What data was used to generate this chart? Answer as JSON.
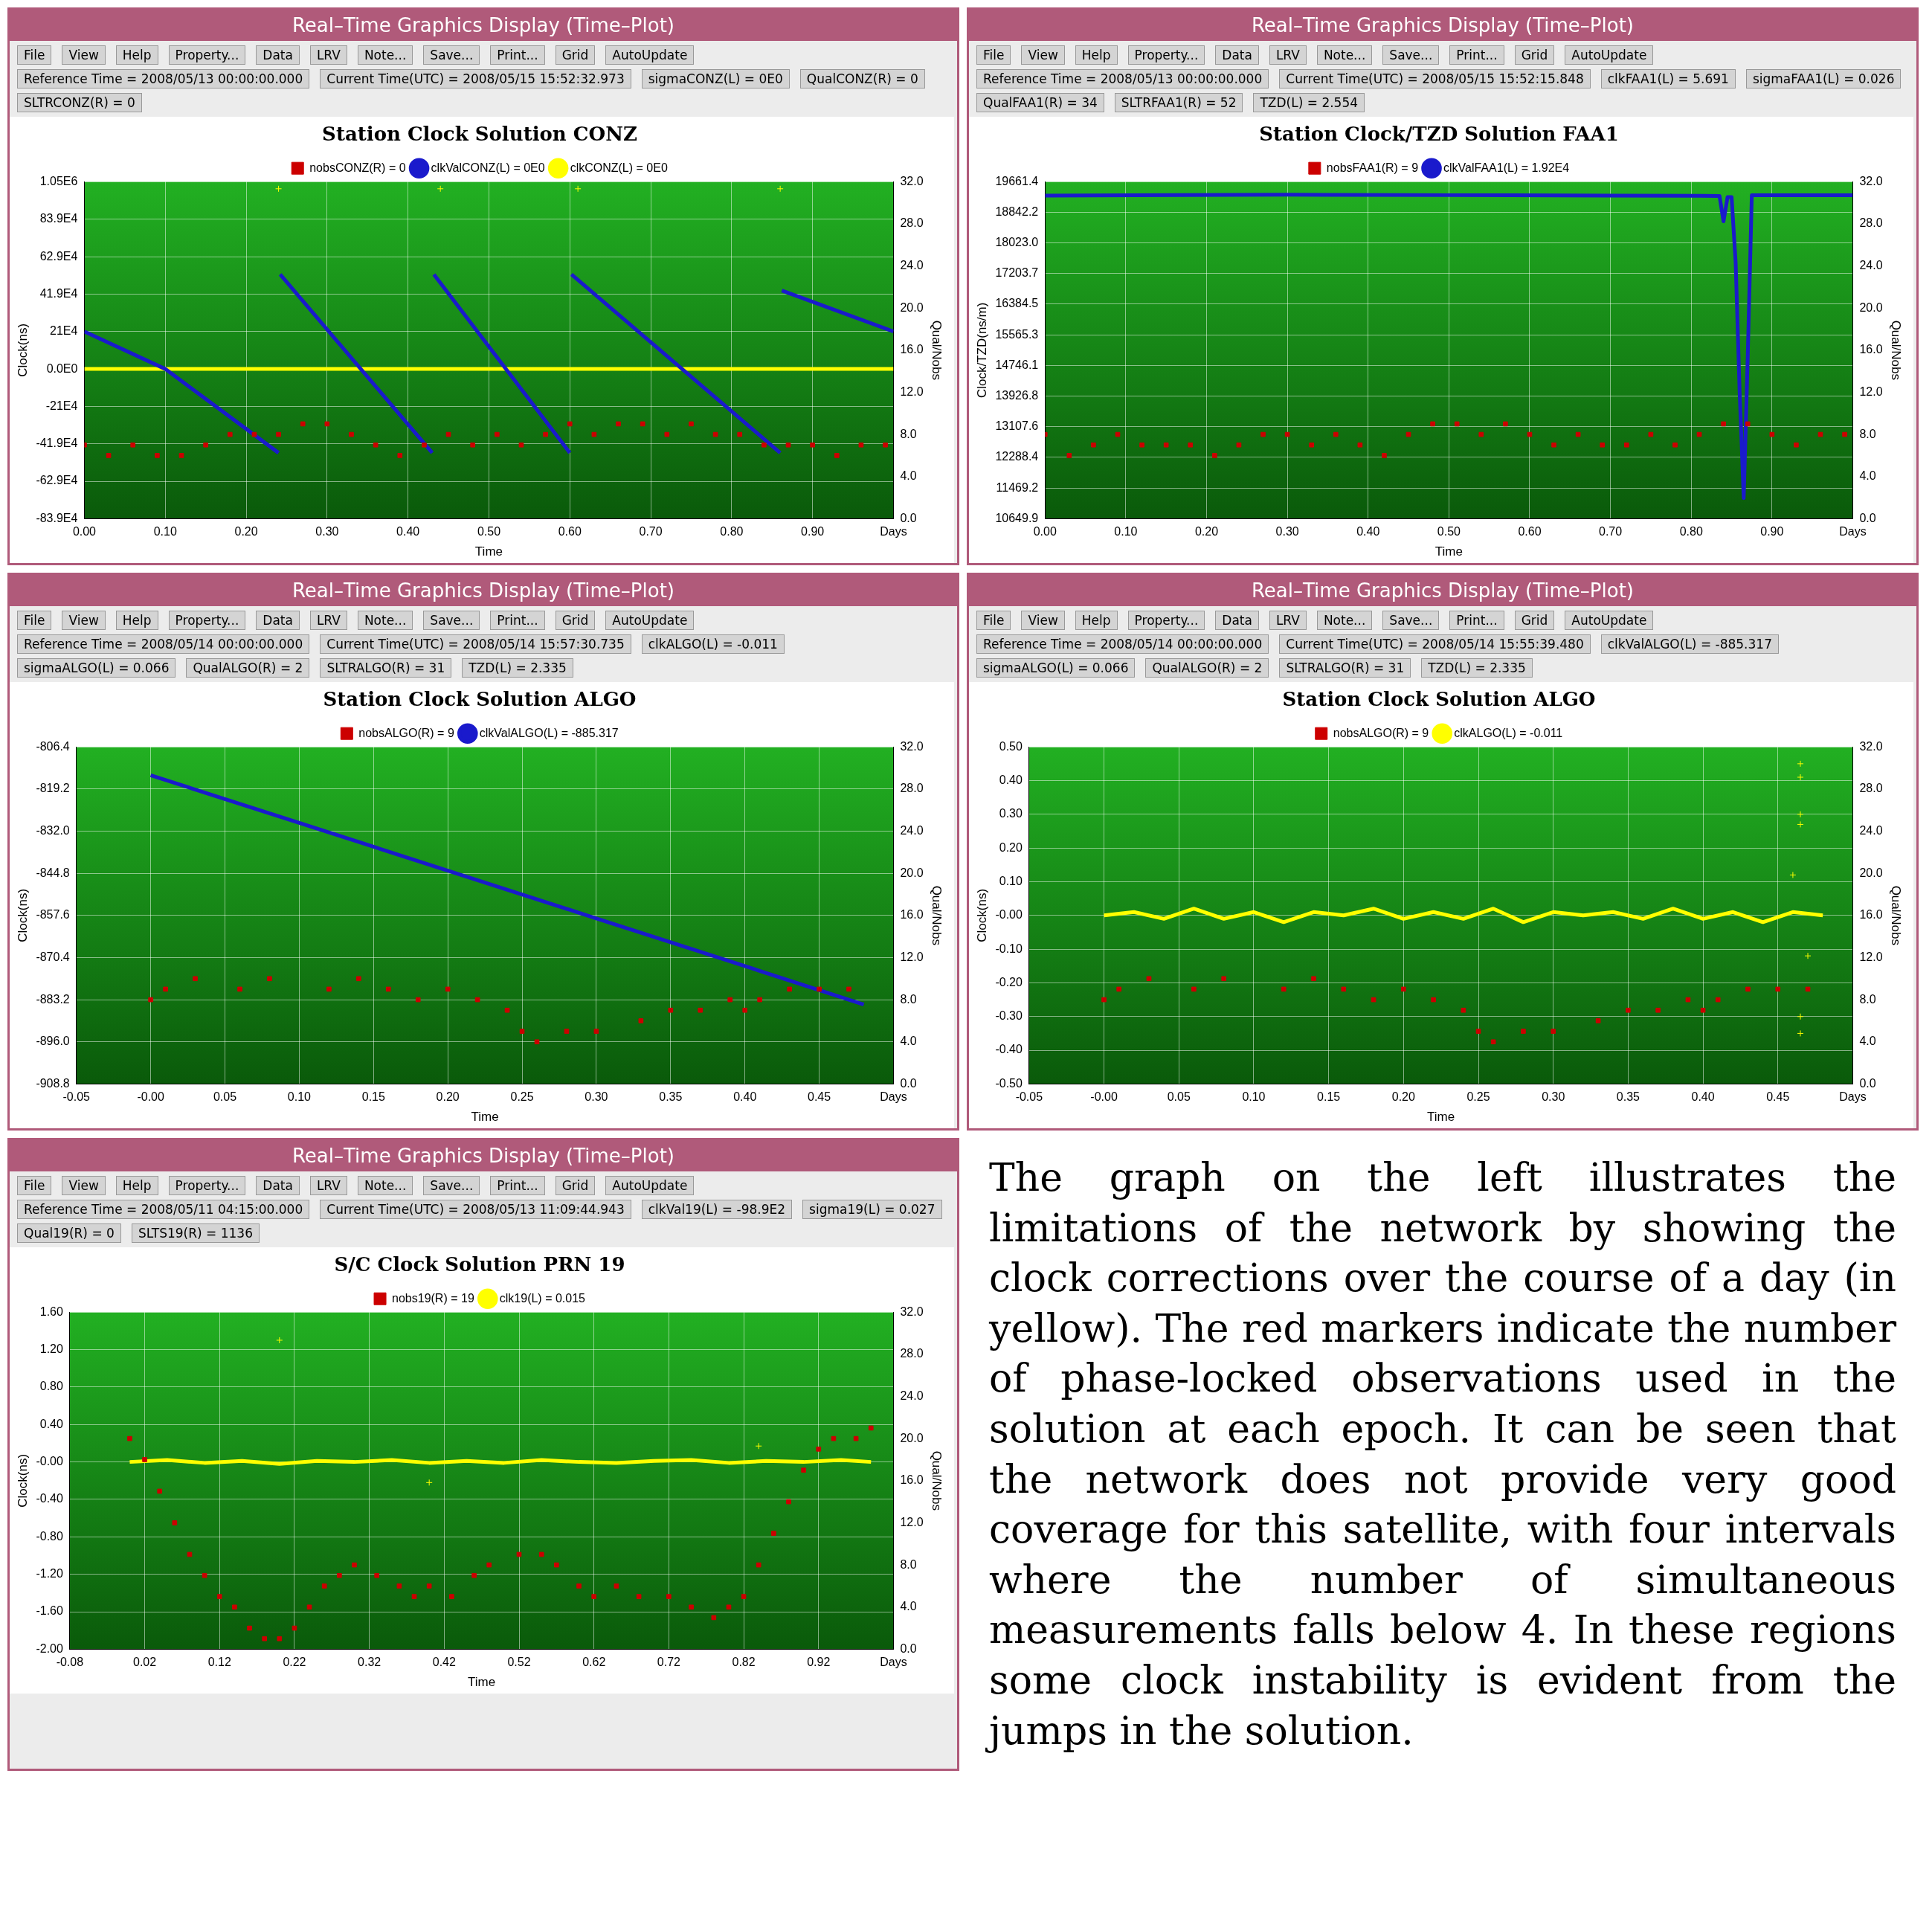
{
  "chart_data": [
    {
      "type": "line",
      "subtitle": "Real–Time Graphics Display (Time–Plot)",
      "title": "Station Clock Solution CONZ",
      "xlabel": "Time",
      "ylabel": "Clock(ns)",
      "y2label": "Qual/Nobs",
      "grid": true,
      "legend": "top",
      "annotations": [
        "File",
        "View",
        "Help",
        "Property...",
        "Data",
        "LRV",
        "Note...",
        "Save...",
        "Print...",
        "Grid",
        "AutoUpdate",
        "Reference Time = 2008/05/13 00:00:00.000",
        "Current Time(UTC) = 2008/05/15 15:52:32.973",
        "sigmaCONZ(L) = 0E0",
        "QualCONZ(R) = 0",
        "SLTRCONZ(R) = 0"
      ],
      "xlim": [
        0,
        1.0
      ],
      "xticks": [
        {
          "value": 0,
          "label": "0.00"
        },
        {
          "value": 0.1,
          "label": "0.10"
        },
        {
          "value": 0.2,
          "label": "0.20"
        },
        {
          "value": 0.3,
          "label": "0.30"
        },
        {
          "value": 0.4,
          "label": "0.40"
        },
        {
          "value": 0.5,
          "label": "0.50"
        },
        {
          "value": 0.6,
          "label": "0.60"
        },
        {
          "value": 0.7,
          "label": "0.70"
        },
        {
          "value": 0.8,
          "label": "0.80"
        },
        {
          "value": 0.9,
          "label": "0.90"
        },
        {
          "value": 1.0,
          "label": "Days"
        }
      ],
      "ylim": [
        -839000,
        1050000
      ],
      "yticks": [
        {
          "value": -839000,
          "label": "-83.9E4"
        },
        {
          "value": -629000,
          "label": "-62.9E4"
        },
        {
          "value": -419000,
          "label": "-41.9E4"
        },
        {
          "value": -210000,
          "label": "-21E4"
        },
        {
          "value": 0,
          "label": "0.0E0"
        },
        {
          "value": 210000,
          "label": "21E4"
        },
        {
          "value": 419000,
          "label": "41.9E4"
        },
        {
          "value": 629000,
          "label": "62.9E4"
        },
        {
          "value": 839000,
          "label": "83.9E4"
        },
        {
          "value": 1050000,
          "label": "1.05E6"
        }
      ],
      "y2lim": [
        0,
        32
      ],
      "y2ticks": [
        {
          "value": 0,
          "label": "0.0"
        },
        {
          "value": 4,
          "label": "4.0"
        },
        {
          "value": 8,
          "label": "8.0"
        },
        {
          "value": 12,
          "label": "12.0"
        },
        {
          "value": 16,
          "label": "16.0"
        },
        {
          "value": 20,
          "label": "20.0"
        },
        {
          "value": 24,
          "label": "24.0"
        },
        {
          "value": 28,
          "label": "28.0"
        },
        {
          "value": 32,
          "label": "32.0"
        }
      ],
      "series": [
        {
          "name": "clkValCONZ(L) = 0E0",
          "type": "line",
          "marker": "none",
          "color": "#1a1acc",
          "x": [
            0,
            0.1,
            0.24,
            0.241,
            0.242,
            0.43,
            0.431,
            0.432,
            0.6,
            0.601,
            0.602,
            0.86,
            0.861,
            0.862,
            1.0
          ],
          "values": [
            210000,
            0,
            -470000,
            null,
            530000,
            -470000,
            null,
            530000,
            -470000,
            null,
            530000,
            -470000,
            null,
            440000,
            210000
          ]
        },
        {
          "name": "clkCONZ(L) = 0E0",
          "type": "line",
          "marker": "none",
          "color": "#ffff00",
          "x": [
            0,
            1.0
          ],
          "values": [
            0,
            0
          ]
        },
        {
          "type": "scatter",
          "marker": "cross",
          "color": "#ffff00",
          "x": [
            0.24,
            0.44,
            0.61,
            0.86
          ],
          "values": [
            1010000,
            1010000,
            1010000,
            1010000
          ]
        },
        {
          "name": "nobsCONZ(R) = 0",
          "type": "scatter",
          "marker": "square",
          "axis": "y2",
          "color": "#cc0000",
          "x": [
            0,
            0.03,
            0.06,
            0.09,
            0.12,
            0.15,
            0.18,
            0.21,
            0.24,
            0.27,
            0.3,
            0.33,
            0.36,
            0.39,
            0.42,
            0.45,
            0.48,
            0.51,
            0.54,
            0.57,
            0.6,
            0.63,
            0.66,
            0.69,
            0.72,
            0.75,
            0.78,
            0.81,
            0.84,
            0.87,
            0.9,
            0.93,
            0.96,
            0.99
          ],
          "values": [
            7,
            6,
            7,
            6,
            6,
            7,
            8,
            8,
            8,
            9,
            9,
            8,
            7,
            6,
            7,
            8,
            7,
            8,
            7,
            8,
            9,
            8,
            9,
            9,
            8,
            9,
            8,
            8,
            7,
            7,
            7,
            6,
            7,
            7
          ]
        }
      ]
    },
    {
      "type": "line",
      "subtitle": "Real–Time Graphics Display (Time–Plot)",
      "title": "Station Clock/TZD Solution FAA1",
      "xlabel": "Time",
      "ylabel": "Clock/TZD(ns/m)",
      "y2label": "Qual/Nobs",
      "grid": true,
      "legend": "top",
      "annotations": [
        "File",
        "View",
        "Help",
        "Property...",
        "Data",
        "LRV",
        "Note...",
        "Save...",
        "Print...",
        "Grid",
        "AutoUpdate",
        "Reference Time = 2008/05/13 00:00:00.000",
        "Current Time(UTC) = 2008/05/15 15:52:15.848",
        "clkFAA1(L) = 5.691",
        "sigmaFAA1(L) = 0.026",
        "QualFAA1(R) = 34",
        "SLTRFAA1(R) = 52",
        "TZD(L) = 2.554"
      ],
      "xlim": [
        0,
        1.0
      ],
      "xticks": [
        {
          "value": 0,
          "label": "0.00"
        },
        {
          "value": 0.1,
          "label": "0.10"
        },
        {
          "value": 0.2,
          "label": "0.20"
        },
        {
          "value": 0.3,
          "label": "0.30"
        },
        {
          "value": 0.4,
          "label": "0.40"
        },
        {
          "value": 0.5,
          "label": "0.50"
        },
        {
          "value": 0.6,
          "label": "0.60"
        },
        {
          "value": 0.7,
          "label": "0.70"
        },
        {
          "value": 0.8,
          "label": "0.80"
        },
        {
          "value": 0.9,
          "label": "0.90"
        },
        {
          "value": 1.0,
          "label": "Days"
        }
      ],
      "ylim": [
        10649.9,
        19661.4
      ],
      "yticks": [
        10649.9,
        11469.2,
        12288.4,
        13107.6,
        13926.8,
        14746.1,
        15565.3,
        16384.5,
        17203.7,
        {
          "value": 18023.0,
          "label": "18023.0"
        },
        18842.2,
        19661.4
      ],
      "y2lim": [
        0,
        32
      ],
      "y2ticks": [
        {
          "value": 0,
          "label": "0.0"
        },
        {
          "value": 4,
          "label": "4.0"
        },
        {
          "value": 8,
          "label": "8.0"
        },
        {
          "value": 12,
          "label": "12.0"
        },
        {
          "value": 16,
          "label": "16.0"
        },
        {
          "value": 20,
          "label": "20.0"
        },
        {
          "value": 24,
          "label": "24.0"
        },
        {
          "value": 28,
          "label": "28.0"
        },
        {
          "value": 32,
          "label": "32.0"
        }
      ],
      "series": [
        {
          "name": "clkValFAA1(L) = 1.92E4",
          "type": "line",
          "marker": "none",
          "color": "#1a1acc",
          "x": [
            0,
            0.3,
            0.5,
            0.7,
            0.835,
            0.84,
            0.845,
            0.85,
            0.855,
            0.86,
            0.865,
            0.87,
            0.875,
            1.0
          ],
          "values": [
            19290,
            19310,
            19300,
            19290,
            19280,
            18600,
            19250,
            19250,
            17500,
            14000,
            11200,
            15000,
            19300,
            19300
          ]
        },
        {
          "name": "nobsFAA1(R) = 9",
          "type": "scatter",
          "marker": "square",
          "axis": "y2",
          "color": "#cc0000",
          "x": [
            0,
            0.03,
            0.06,
            0.09,
            0.12,
            0.15,
            0.18,
            0.21,
            0.24,
            0.27,
            0.3,
            0.33,
            0.36,
            0.39,
            0.42,
            0.45,
            0.48,
            0.51,
            0.54,
            0.57,
            0.6,
            0.63,
            0.66,
            0.69,
            0.72,
            0.75,
            0.78,
            0.81,
            0.84,
            0.87,
            0.9,
            0.93,
            0.96,
            0.99
          ],
          "values": [
            8,
            6,
            7,
            8,
            7,
            7,
            7,
            6,
            7,
            8,
            8,
            7,
            8,
            7,
            6,
            8,
            9,
            9,
            8,
            9,
            8,
            7,
            8,
            7,
            7,
            8,
            7,
            8,
            9,
            9,
            8,
            7,
            8,
            8
          ]
        }
      ]
    },
    {
      "type": "line",
      "subtitle": "Real–Time Graphics Display (Time–Plot)",
      "title": "Station Clock Solution ALGO",
      "xlabel": "Time",
      "ylabel": "Clock(ns)",
      "y2label": "Qual/Nobs",
      "grid": true,
      "legend": "top",
      "annotations": [
        "File",
        "View",
        "Help",
        "Property...",
        "Data",
        "LRV",
        "Note...",
        "Save...",
        "Print...",
        "Grid",
        "AutoUpdate",
        "Reference Time = 2008/05/14 00:00:00.000",
        "Current Time(UTC) = 2008/05/14 15:57:30.735",
        "clkALGO(L) = -0.011",
        "sigmaALGO(L) = 0.066",
        "QualALGO(R) = 2",
        "SLTRALGO(R) = 31",
        "TZD(L) = 2.335"
      ],
      "xlim": [
        -0.05,
        0.5
      ],
      "xticks": [
        {
          "value": -0.05,
          "label": "-0.05"
        },
        {
          "value": 0,
          "label": "-0.00"
        },
        {
          "value": 0.05,
          "label": "0.05"
        },
        {
          "value": 0.1,
          "label": "0.10"
        },
        {
          "value": 0.15,
          "label": "0.15"
        },
        {
          "value": 0.2,
          "label": "0.20"
        },
        {
          "value": 0.25,
          "label": "0.25"
        },
        {
          "value": 0.3,
          "label": "0.30"
        },
        {
          "value": 0.35,
          "label": "0.35"
        },
        {
          "value": 0.4,
          "label": "0.40"
        },
        {
          "value": 0.45,
          "label": "0.45"
        },
        {
          "value": 0.5,
          "label": "Days"
        }
      ],
      "ylim": [
        -908.8,
        -806.4
      ],
      "yticks": [
        -908.8,
        {
          "value": -896.0,
          "label": "-896.0"
        },
        -883.2,
        -870.4,
        -857.6,
        -844.8,
        {
          "value": -832.0,
          "label": "-832.0"
        },
        -819.2,
        -806.4
      ],
      "y2lim": [
        0,
        32
      ],
      "y2ticks": [
        {
          "value": 0,
          "label": "0.0"
        },
        {
          "value": 4,
          "label": "4.0"
        },
        {
          "value": 8,
          "label": "8.0"
        },
        {
          "value": 12,
          "label": "12.0"
        },
        {
          "value": 16,
          "label": "16.0"
        },
        {
          "value": 20,
          "label": "20.0"
        },
        {
          "value": 24,
          "label": "24.0"
        },
        {
          "value": 28,
          "label": "28.0"
        },
        {
          "value": 32,
          "label": "32.0"
        }
      ],
      "series": [
        {
          "name": "clkValALGO(L) = -885.317",
          "type": "line",
          "marker": "none",
          "color": "#1a1acc",
          "x": [
            0,
            0.1,
            0.2,
            0.3,
            0.4,
            0.48
          ],
          "values": [
            -815,
            -829.5,
            -844,
            -858.5,
            -873,
            -884.7
          ]
        },
        {
          "name": "nobsALGO(R) = 9",
          "type": "scatter",
          "marker": "square",
          "axis": "y2",
          "color": "#cc0000",
          "x": [
            0,
            0.01,
            0.03,
            0.06,
            0.08,
            0.12,
            0.14,
            0.16,
            0.18,
            0.2,
            0.22,
            0.24,
            0.25,
            0.26,
            0.28,
            0.3,
            0.33,
            0.35,
            0.37,
            0.39,
            0.4,
            0.41,
            0.43,
            0.45,
            0.47
          ],
          "values": [
            8,
            9,
            10,
            9,
            10,
            9,
            10,
            9,
            8,
            9,
            8,
            7,
            5,
            4,
            5,
            5,
            6,
            7,
            7,
            8,
            7,
            8,
            9,
            9,
            9
          ]
        }
      ]
    },
    {
      "type": "line",
      "subtitle": "Real–Time Graphics Display (Time–Plot)",
      "title": "Station Clock Solution ALGO",
      "xlabel": "Time",
      "ylabel": "Clock(ns)",
      "y2label": "Qual/Nobs",
      "grid": true,
      "legend": "top",
      "annotations": [
        "File",
        "View",
        "Help",
        "Property...",
        "Data",
        "LRV",
        "Note...",
        "Save...",
        "Print...",
        "Grid",
        "AutoUpdate",
        "Reference Time = 2008/05/14 00:00:00.000",
        "Current Time(UTC) = 2008/05/14 15:55:39.480",
        "clkValALGO(L) = -885.317",
        "sigmaALGO(L) = 0.066",
        "QualALGO(R) = 2",
        "SLTRALGO(R) = 31",
        "TZD(L) = 2.335"
      ],
      "xlim": [
        -0.05,
        0.5
      ],
      "xticks": [
        {
          "value": -0.05,
          "label": "-0.05"
        },
        {
          "value": 0,
          "label": "-0.00"
        },
        {
          "value": 0.05,
          "label": "0.05"
        },
        {
          "value": 0.1,
          "label": "0.10"
        },
        {
          "value": 0.15,
          "label": "0.15"
        },
        {
          "value": 0.2,
          "label": "0.20"
        },
        {
          "value": 0.25,
          "label": "0.25"
        },
        {
          "value": 0.3,
          "label": "0.30"
        },
        {
          "value": 0.35,
          "label": "0.35"
        },
        {
          "value": 0.4,
          "label": "0.40"
        },
        {
          "value": 0.45,
          "label": "0.45"
        },
        {
          "value": 0.5,
          "label": "Days"
        }
      ],
      "ylim": [
        -0.5,
        0.5
      ],
      "yticks": [
        {
          "value": -0.5,
          "label": "-0.50"
        },
        {
          "value": -0.4,
          "label": "-0.40"
        },
        {
          "value": -0.3,
          "label": "-0.30"
        },
        {
          "value": -0.2,
          "label": "-0.20"
        },
        {
          "value": -0.1,
          "label": "-0.10"
        },
        {
          "value": 0,
          "label": "-0.00"
        },
        {
          "value": 0.1,
          "label": "0.10"
        },
        {
          "value": 0.2,
          "label": "0.20"
        },
        {
          "value": 0.3,
          "label": "0.30"
        },
        {
          "value": 0.4,
          "label": "0.40"
        },
        {
          "value": 0.5,
          "label": "0.50"
        }
      ],
      "y2lim": [
        0,
        32
      ],
      "y2ticks": [
        {
          "value": 0,
          "label": "0.0"
        },
        {
          "value": 4,
          "label": "4.0"
        },
        {
          "value": 8,
          "label": "8.0"
        },
        {
          "value": 12,
          "label": "12.0"
        },
        {
          "value": 16,
          "label": "16.0"
        },
        {
          "value": 20,
          "label": "20.0"
        },
        {
          "value": 24,
          "label": "24.0"
        },
        {
          "value": 28,
          "label": "28.0"
        },
        {
          "value": 32,
          "label": "32.0"
        }
      ],
      "series": [
        {
          "name": "clkALGO(L) = -0.011",
          "type": "line",
          "marker": "none",
          "color": "#ffff00",
          "x": [
            0,
            0.02,
            0.04,
            0.06,
            0.08,
            0.1,
            0.12,
            0.14,
            0.16,
            0.18,
            0.2,
            0.22,
            0.24,
            0.26,
            0.28,
            0.3,
            0.32,
            0.34,
            0.36,
            0.38,
            0.4,
            0.42,
            0.44,
            0.46,
            0.48
          ],
          "values": [
            0,
            0.01,
            -0.01,
            0.02,
            -0.01,
            0.01,
            -0.02,
            0.01,
            0,
            0.02,
            -0.01,
            0.01,
            -0.01,
            0.02,
            -0.02,
            0.01,
            0,
            0.01,
            -0.01,
            0.02,
            -0.01,
            0.01,
            -0.02,
            0.01,
            0
          ]
        },
        {
          "type": "scatter",
          "marker": "cross",
          "color": "#ffff00",
          "x": [
            0.465,
            0.465,
            0.465,
            0.465,
            0.465,
            0.465,
            0.46,
            0.47
          ],
          "values": [
            0.45,
            0.41,
            0.3,
            0.27,
            -0.3,
            -0.35,
            0.12,
            -0.12
          ]
        },
        {
          "name": "nobsALGO(R) = 9",
          "type": "scatter",
          "marker": "square",
          "axis": "y2",
          "color": "#cc0000",
          "x": [
            0,
            0.01,
            0.03,
            0.06,
            0.08,
            0.12,
            0.14,
            0.16,
            0.18,
            0.2,
            0.22,
            0.24,
            0.25,
            0.26,
            0.28,
            0.3,
            0.33,
            0.35,
            0.37,
            0.39,
            0.4,
            0.41,
            0.43,
            0.45,
            0.47
          ],
          "values": [
            8,
            9,
            10,
            9,
            10,
            9,
            10,
            9,
            8,
            9,
            8,
            7,
            5,
            4,
            5,
            5,
            6,
            7,
            7,
            8,
            7,
            8,
            9,
            9,
            9
          ]
        }
      ]
    },
    {
      "type": "line",
      "subtitle": "Real–Time Graphics Display (Time–Plot)",
      "title": "S/C Clock Solution PRN 19",
      "xlabel": "Time",
      "ylabel": "Clock(ns)",
      "y2label": "Qual/Nobs",
      "grid": true,
      "legend": "top",
      "annotations": [
        "File",
        "View",
        "Help",
        "Property...",
        "Data",
        "LRV",
        "Note...",
        "Save...",
        "Print...",
        "Grid",
        "AutoUpdate",
        "Reference Time = 2008/05/11 04:15:00.000",
        "Current Time(UTC) = 2008/05/13 11:09:44.943",
        "clkVal19(L) = -98.9E2",
        "sigma19(L) = 0.027",
        "Qual19(R) = 0",
        "SLTS19(R) = 1136"
      ],
      "xlim": [
        -0.08,
        1.02
      ],
      "xticks": [
        {
          "value": -0.08,
          "label": "-0.08"
        },
        {
          "value": 0.02,
          "label": "0.02"
        },
        {
          "value": 0.12,
          "label": "0.12"
        },
        {
          "value": 0.22,
          "label": "0.22"
        },
        {
          "value": 0.32,
          "label": "0.32"
        },
        {
          "value": 0.42,
          "label": "0.42"
        },
        {
          "value": 0.52,
          "label": "0.52"
        },
        {
          "value": 0.62,
          "label": "0.62"
        },
        {
          "value": 0.72,
          "label": "0.72"
        },
        {
          "value": 0.82,
          "label": "0.82"
        },
        {
          "value": 0.92,
          "label": "0.92"
        },
        {
          "value": 1.02,
          "label": "Days"
        }
      ],
      "ylim": [
        -2.0,
        1.6
      ],
      "yticks": [
        {
          "value": -2,
          "label": "-2.00"
        },
        {
          "value": -1.6,
          "label": "-1.60"
        },
        {
          "value": -1.2,
          "label": "-1.20"
        },
        {
          "value": -0.8,
          "label": "-0.80"
        },
        {
          "value": -0.4,
          "label": "-0.40"
        },
        {
          "value": 0,
          "label": "-0.00"
        },
        {
          "value": 0.4,
          "label": "0.40"
        },
        {
          "value": 0.8,
          "label": "0.80"
        },
        {
          "value": 1.2,
          "label": "1.20"
        },
        {
          "value": 1.6,
          "label": "1.60"
        }
      ],
      "y2lim": [
        0,
        32
      ],
      "y2ticks": [
        {
          "value": 0,
          "label": "0.0"
        },
        {
          "value": 4,
          "label": "4.0"
        },
        {
          "value": 8,
          "label": "8.0"
        },
        {
          "value": 12,
          "label": "12.0"
        },
        {
          "value": 16,
          "label": "16.0"
        },
        {
          "value": 20,
          "label": "20.0"
        },
        {
          "value": 24,
          "label": "24.0"
        },
        {
          "value": 28,
          "label": "28.0"
        },
        {
          "value": 32,
          "label": "32.0"
        }
      ],
      "series": [
        {
          "name": "clk19(L) = 0.015",
          "type": "line",
          "marker": "none",
          "color": "#ffff00",
          "x": [
            0,
            0.05,
            0.1,
            0.15,
            0.2,
            0.25,
            0.3,
            0.35,
            0.4,
            0.45,
            0.5,
            0.55,
            0.6,
            0.65,
            0.7,
            0.75,
            0.8,
            0.85,
            0.9,
            0.95,
            0.99
          ],
          "values": [
            0,
            0.02,
            -0.01,
            0.01,
            -0.02,
            0.01,
            0,
            0.02,
            -0.01,
            0.01,
            -0.01,
            0.02,
            0,
            -0.01,
            0.01,
            0.02,
            -0.01,
            0.01,
            0,
            0.02,
            0
          ]
        },
        {
          "type": "scatter",
          "marker": "cross",
          "color": "#ffff00",
          "x": [
            0.2,
            0.4,
            0.84
          ],
          "values": [
            1.3,
            -0.22,
            0.17
          ]
        },
        {
          "name": "nobs19(R) = 19",
          "type": "scatter",
          "marker": "square",
          "axis": "y2",
          "color": "#cc0000",
          "x": [
            0,
            0.02,
            0.04,
            0.06,
            0.08,
            0.1,
            0.12,
            0.14,
            0.16,
            0.18,
            0.2,
            0.22,
            0.24,
            0.26,
            0.28,
            0.3,
            0.33,
            0.36,
            0.38,
            0.4,
            0.43,
            0.46,
            0.48,
            0.52,
            0.55,
            0.57,
            0.6,
            0.62,
            0.65,
            0.68,
            0.72,
            0.75,
            0.78,
            0.8,
            0.82,
            0.84,
            0.86,
            0.88,
            0.9,
            0.92,
            0.94,
            0.97,
            0.99
          ],
          "values": [
            20,
            18,
            15,
            12,
            9,
            7,
            5,
            4,
            2,
            1,
            1,
            2,
            4,
            6,
            7,
            8,
            7,
            6,
            5,
            6,
            5,
            7,
            8,
            9,
            9,
            8,
            6,
            5,
            6,
            5,
            5,
            4,
            3,
            4,
            5,
            8,
            11,
            14,
            17,
            19,
            20,
            20,
            21
          ]
        }
      ]
    },
    {
      "type": "other",
      "annotations": [
        "The graph on the left illustrates the limitations of the network by showing the clock corrections over the course of a day (in yellow). The red markers indicate the number of phase-locked observations used in the solution at each epoch. It can be seen that the network does not provide very good coverage for this satellite, with four intervals where the number of simultaneous measurements falls below 4. In these regions some clock instability is evident from the jumps in the solution."
      ]
    }
  ]
}
